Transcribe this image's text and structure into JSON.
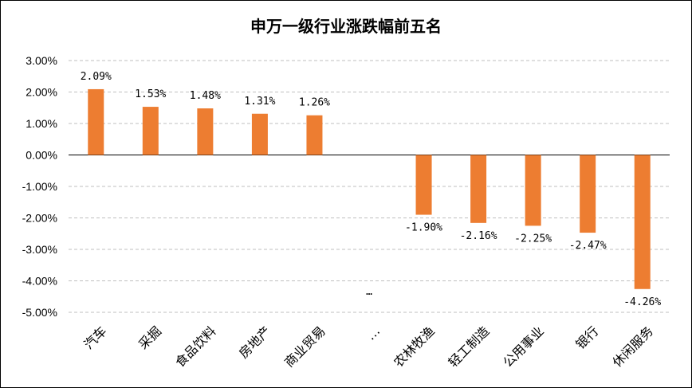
{
  "chart_data": {
    "type": "bar",
    "title": "申万一级行业涨跌幅前五名",
    "xlabel": "",
    "ylabel": "",
    "ylim": [
      -5.0,
      3.0
    ],
    "yticks": [
      "3.00%",
      "2.00%",
      "1.00%",
      "0.00%",
      "-1.00%",
      "-2.00%",
      "-3.00%",
      "-4.00%",
      "-5.00%"
    ],
    "grid": true,
    "legend": "none",
    "bar_color": "#ed7d31",
    "categories": [
      "汽车",
      "采掘",
      "食品饮料",
      "房地产",
      "商业贸易",
      "…",
      "农林牧渔",
      "轻工制造",
      "公用事业",
      "银行",
      "休闲服务"
    ],
    "values": [
      2.09,
      1.53,
      1.48,
      1.31,
      1.26,
      null,
      -1.9,
      -2.16,
      -2.25,
      -2.47,
      -4.26
    ],
    "data_labels": [
      "2.09%",
      "1.53%",
      "1.48%",
      "1.31%",
      "1.26%",
      "…",
      "-1.90%",
      "-2.16%",
      "-2.25%",
      "-2.47%",
      "-4.26%"
    ]
  }
}
